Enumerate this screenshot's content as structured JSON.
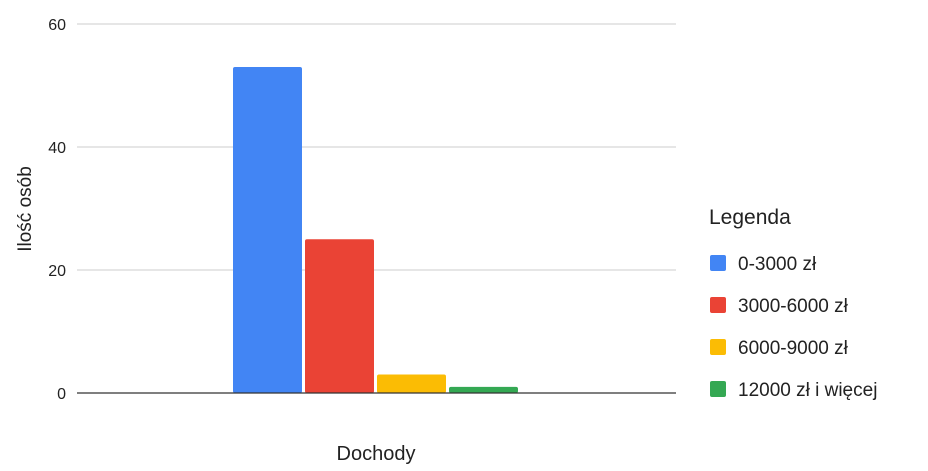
{
  "chart_data": {
    "type": "bar",
    "title": "",
    "xlabel": "Dochody",
    "ylabel": "Ilość osób",
    "ylim": [
      0,
      60
    ],
    "yticks": [
      0,
      20,
      40,
      60
    ],
    "grid": true,
    "legend": {
      "title": "Legenda",
      "position": "right"
    },
    "categories": [
      ""
    ],
    "series": [
      {
        "name": "0-3000 zł",
        "values": [
          53
        ],
        "color": "#4285f4"
      },
      {
        "name": "3000-6000 zł",
        "values": [
          25
        ],
        "color": "#ea4335"
      },
      {
        "name": "6000-9000 zł",
        "values": [
          3
        ],
        "color": "#fbbc04"
      },
      {
        "name": "12000 zł i więcej",
        "values": [
          1
        ],
        "color": "#34a853"
      }
    ]
  }
}
